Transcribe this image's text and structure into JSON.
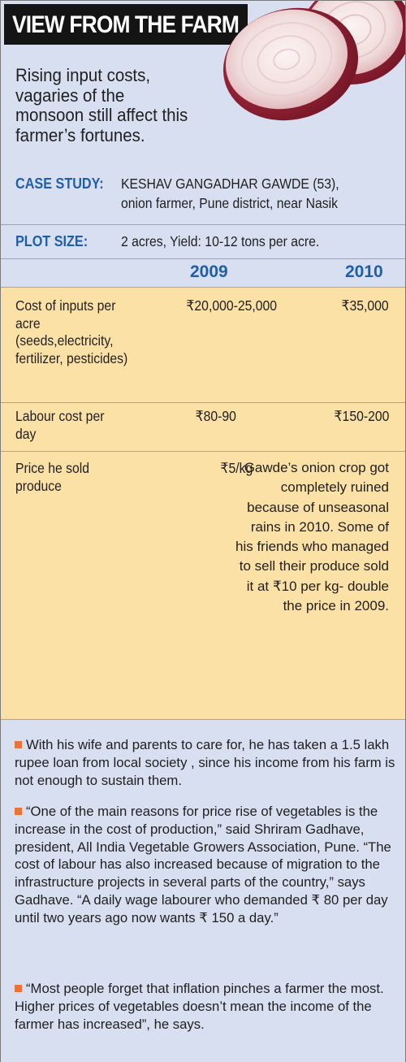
{
  "header": {
    "title": "VIEW FROM THE FARM",
    "intro": "Rising input costs, vagaries of the monsoon still affect this farmer’s fortunes."
  },
  "case_study": {
    "label": "CASE STUDY:",
    "line1": "KESHAV GANGADHAR GAWDE (53),",
    "line2": "onion farmer, Pune district, near Nasik"
  },
  "plot_size": {
    "label": "PLOT SIZE:",
    "value": "2 acres, Yield: 10-12 tons per acre."
  },
  "table": {
    "years": [
      "2009",
      "2010"
    ],
    "rows": [
      {
        "label": "Cost of inputs per acre (seeds,electricity, fertilizer, pesticides)",
        "v2009": "₹20,000-25,000",
        "v2010": "₹35,000"
      },
      {
        "label": "Labour cost per day",
        "v2009": "₹80-90",
        "v2010": "₹150-200"
      },
      {
        "label": "Price he sold produce",
        "v2009": "₹5/kg",
        "v2010": "Gawde’s onion crop got completely ruined because of unseasonal rains in 2010. Some of his friends who managed to sell their produce sold it at ₹10 per kg- double the price in 2009."
      }
    ]
  },
  "notes": [
    "With his wife and parents to care for, he has taken a 1.5 lakh rupee loan from local society , since his income from his farm is not enough to sustain them.",
    "“One of the main reasons for price rise of vegetables is the increase in the cost of production,” said Shriram Gadhave, president, All India Vegetable Growers Association, Pune. “The cost of labour has also increased because of migration to the infrastructure projects in several parts of the country,” says Gadhave. “A daily wage labourer who demanded ₹ 80 per day until two years ago now wants ₹ 150 a day.”",
    "“Most people forget that inflation pinches a farmer the most. Higher prices of vegetables doesn’t mean the income of the farmer has increased”, he says."
  ],
  "colors": {
    "blue_panel": "#d8dff0",
    "table_yellow": "#fce1a6",
    "label_blue": "#1f5fa8",
    "bullet_orange": "#e8743b",
    "title_bar": "#141414"
  },
  "icons": [
    "onion-illustration",
    "bullet-square-icon"
  ]
}
